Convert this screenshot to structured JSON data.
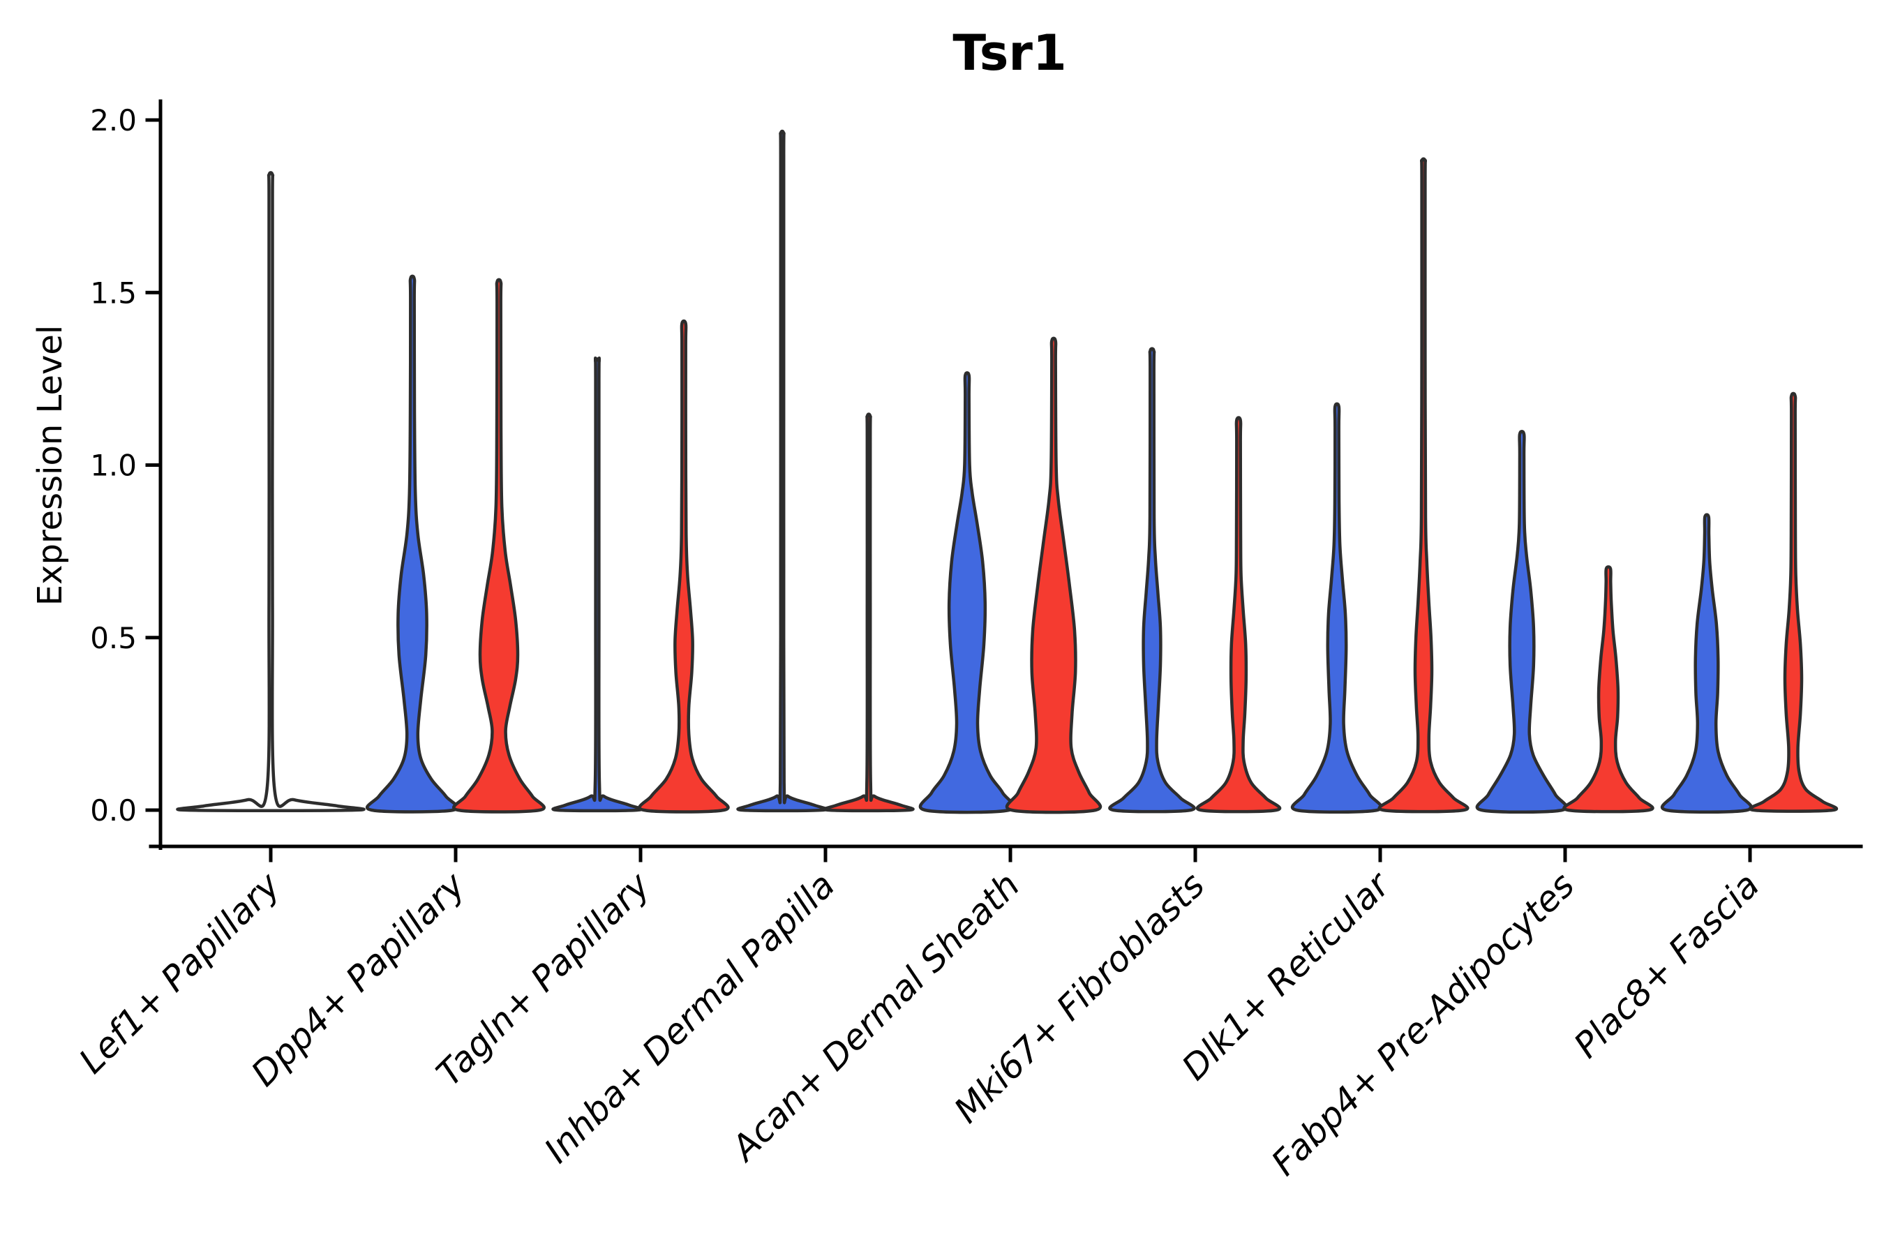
{
  "chart_data": {
    "type": "violin",
    "title": "Tsr1",
    "xlabel": "",
    "ylabel": "Expression Level",
    "ylim": [
      0.0,
      2.0
    ],
    "yticks": [
      0.0,
      0.5,
      1.0,
      1.5,
      2.0
    ],
    "ytick_labels": [
      "0.0",
      "0.5",
      "1.0",
      "1.5",
      "2.0"
    ],
    "grid": false,
    "legend_position": "none",
    "spines_visible": [
      "left",
      "bottom"
    ],
    "categories": [
      "Lef1+ Papillary",
      "Dpp4+ Papillary",
      "Tagln+ Papillary",
      "Inhba+ Dermal Papilla",
      "Acan+ Dermal Sheath",
      "Mki67+ Fibroblasts",
      "Dlk1+ Reticular",
      "Fabp4+ Pre-Adipocytes",
      "Plac8+ Fascia"
    ],
    "colors": {
      "blue": "#4169e0",
      "red": "#f53b30",
      "single": "#ffffff",
      "outline": "#2d2d2d"
    },
    "violins": [
      {
        "category": "Lef1+ Papillary",
        "series": "single",
        "max_expression": 1.84,
        "width_scale": 2,
        "profile": [
          [
            0,
            1
          ],
          [
            0.012,
            0.8
          ],
          [
            0.03,
            0.28
          ],
          [
            0.06,
            0.045
          ],
          [
            0.6,
            0.021
          ],
          [
            1.3,
            0.021
          ],
          [
            1.78,
            0.021
          ],
          [
            1.84,
            0.021
          ]
        ]
      },
      {
        "category": "Dpp4+ Papillary",
        "series": "blue",
        "max_expression": 1.54,
        "width_scale": 1,
        "profile": [
          [
            0,
            0.97
          ],
          [
            0.04,
            0.8
          ],
          [
            0.09,
            0.45
          ],
          [
            0.15,
            0.2
          ],
          [
            0.22,
            0.13
          ],
          [
            0.32,
            0.2
          ],
          [
            0.45,
            0.32
          ],
          [
            0.57,
            0.34
          ],
          [
            0.68,
            0.27
          ],
          [
            0.8,
            0.13
          ],
          [
            0.92,
            0.07
          ],
          [
            1.15,
            0.05
          ],
          [
            1.48,
            0.045
          ],
          [
            1.54,
            0.045
          ]
        ]
      },
      {
        "category": "Dpp4+ Papillary",
        "series": "red",
        "max_expression": 1.53,
        "width_scale": 1,
        "profile": [
          [
            0,
            0.97
          ],
          [
            0.04,
            0.8
          ],
          [
            0.09,
            0.5
          ],
          [
            0.16,
            0.24
          ],
          [
            0.23,
            0.16
          ],
          [
            0.3,
            0.26
          ],
          [
            0.38,
            0.4
          ],
          [
            0.45,
            0.45
          ],
          [
            0.55,
            0.4
          ],
          [
            0.65,
            0.28
          ],
          [
            0.75,
            0.15
          ],
          [
            0.88,
            0.07
          ],
          [
            1.1,
            0.05
          ],
          [
            1.47,
            0.045
          ],
          [
            1.53,
            0.045
          ]
        ]
      },
      {
        "category": "Tagln+ Papillary",
        "series": "blue",
        "max_expression": 1.3,
        "width_scale": 1,
        "profile": [
          [
            0,
            0.95
          ],
          [
            0.015,
            0.75
          ],
          [
            0.04,
            0.16
          ],
          [
            0.08,
            0.05
          ],
          [
            0.6,
            0.04
          ],
          [
            1.24,
            0.04
          ],
          [
            1.3,
            0.04
          ]
        ]
      },
      {
        "category": "Tagln+ Papillary",
        "series": "red",
        "max_expression": 1.41,
        "width_scale": 1,
        "profile": [
          [
            0,
            0.95
          ],
          [
            0.04,
            0.78
          ],
          [
            0.09,
            0.42
          ],
          [
            0.15,
            0.2
          ],
          [
            0.22,
            0.12
          ],
          [
            0.3,
            0.12
          ],
          [
            0.4,
            0.19
          ],
          [
            0.49,
            0.21
          ],
          [
            0.58,
            0.16
          ],
          [
            0.68,
            0.09
          ],
          [
            0.8,
            0.055
          ],
          [
            1.1,
            0.045
          ],
          [
            1.35,
            0.045
          ],
          [
            1.41,
            0.045
          ]
        ]
      },
      {
        "category": "Inhba+ Dermal Papilla",
        "series": "blue",
        "max_expression": 1.96,
        "width_scale": 1,
        "profile": [
          [
            0,
            0.95
          ],
          [
            0.015,
            0.75
          ],
          [
            0.04,
            0.14
          ],
          [
            0.08,
            0.045
          ],
          [
            0.7,
            0.035
          ],
          [
            1.4,
            0.035
          ],
          [
            1.9,
            0.035
          ],
          [
            1.96,
            0.035
          ]
        ]
      },
      {
        "category": "Inhba+ Dermal Papilla",
        "series": "red",
        "max_expression": 1.14,
        "width_scale": 1,
        "profile": [
          [
            0,
            0.95
          ],
          [
            0.015,
            0.75
          ],
          [
            0.04,
            0.14
          ],
          [
            0.08,
            0.045
          ],
          [
            0.6,
            0.035
          ],
          [
            1.08,
            0.035
          ],
          [
            1.14,
            0.035
          ]
        ]
      },
      {
        "category": "Acan+ Dermal Sheath",
        "series": "blue",
        "max_expression": 1.26,
        "width_scale": 1,
        "profile": [
          [
            0,
            1
          ],
          [
            0.05,
            0.85
          ],
          [
            0.1,
            0.55
          ],
          [
            0.17,
            0.32
          ],
          [
            0.25,
            0.25
          ],
          [
            0.35,
            0.3
          ],
          [
            0.48,
            0.4
          ],
          [
            0.6,
            0.43
          ],
          [
            0.72,
            0.37
          ],
          [
            0.83,
            0.24
          ],
          [
            0.92,
            0.12
          ],
          [
            1.0,
            0.06
          ],
          [
            1.2,
            0.045
          ],
          [
            1.26,
            0.045
          ]
        ]
      },
      {
        "category": "Acan+ Dermal Sheath",
        "series": "red",
        "max_expression": 1.36,
        "width_scale": 1,
        "profile": [
          [
            0,
            1
          ],
          [
            0.05,
            0.85
          ],
          [
            0.11,
            0.6
          ],
          [
            0.18,
            0.42
          ],
          [
            0.28,
            0.44
          ],
          [
            0.4,
            0.52
          ],
          [
            0.52,
            0.5
          ],
          [
            0.65,
            0.38
          ],
          [
            0.78,
            0.24
          ],
          [
            0.9,
            0.11
          ],
          [
            1.0,
            0.06
          ],
          [
            1.3,
            0.045
          ],
          [
            1.36,
            0.045
          ]
        ]
      },
      {
        "category": "Mki67+ Fibroblasts",
        "series": "blue",
        "max_expression": 1.33,
        "width_scale": 1,
        "profile": [
          [
            0,
            0.92
          ],
          [
            0.035,
            0.68
          ],
          [
            0.08,
            0.32
          ],
          [
            0.14,
            0.14
          ],
          [
            0.2,
            0.11
          ],
          [
            0.3,
            0.15
          ],
          [
            0.42,
            0.2
          ],
          [
            0.53,
            0.2
          ],
          [
            0.63,
            0.14
          ],
          [
            0.73,
            0.08
          ],
          [
            0.85,
            0.05
          ],
          [
            1.27,
            0.045
          ],
          [
            1.33,
            0.045
          ]
        ]
      },
      {
        "category": "Mki67+ Fibroblasts",
        "series": "red",
        "max_expression": 1.13,
        "width_scale": 1,
        "profile": [
          [
            0,
            0.9
          ],
          [
            0.035,
            0.65
          ],
          [
            0.08,
            0.3
          ],
          [
            0.14,
            0.13
          ],
          [
            0.2,
            0.11
          ],
          [
            0.28,
            0.15
          ],
          [
            0.38,
            0.18
          ],
          [
            0.48,
            0.17
          ],
          [
            0.58,
            0.11
          ],
          [
            0.68,
            0.06
          ],
          [
            0.8,
            0.05
          ],
          [
            1.07,
            0.045
          ],
          [
            1.13,
            0.045
          ]
        ]
      },
      {
        "category": "Dlk1+ Reticular",
        "series": "blue",
        "max_expression": 1.17,
        "width_scale": 1,
        "profile": [
          [
            0,
            0.96
          ],
          [
            0.045,
            0.78
          ],
          [
            0.1,
            0.48
          ],
          [
            0.17,
            0.24
          ],
          [
            0.25,
            0.16
          ],
          [
            0.35,
            0.19
          ],
          [
            0.47,
            0.22
          ],
          [
            0.57,
            0.2
          ],
          [
            0.67,
            0.13
          ],
          [
            0.77,
            0.07
          ],
          [
            0.9,
            0.05
          ],
          [
            1.11,
            0.045
          ],
          [
            1.17,
            0.045
          ]
        ]
      },
      {
        "category": "Dlk1+ Reticular",
        "series": "red",
        "max_expression": 1.88,
        "width_scale": 1,
        "profile": [
          [
            0,
            0.96
          ],
          [
            0.035,
            0.72
          ],
          [
            0.08,
            0.38
          ],
          [
            0.14,
            0.17
          ],
          [
            0.21,
            0.13
          ],
          [
            0.3,
            0.17
          ],
          [
            0.4,
            0.2
          ],
          [
            0.5,
            0.18
          ],
          [
            0.6,
            0.13
          ],
          [
            0.72,
            0.08
          ],
          [
            0.85,
            0.05
          ],
          [
            1.3,
            0.04
          ],
          [
            1.82,
            0.04
          ],
          [
            1.88,
            0.04
          ]
        ]
      },
      {
        "category": "Fabp4+ Pre-Adipocytes",
        "series": "blue",
        "max_expression": 1.09,
        "width_scale": 1,
        "profile": [
          [
            0,
            0.96
          ],
          [
            0.045,
            0.8
          ],
          [
            0.1,
            0.52
          ],
          [
            0.16,
            0.27
          ],
          [
            0.22,
            0.18
          ],
          [
            0.3,
            0.21
          ],
          [
            0.42,
            0.28
          ],
          [
            0.53,
            0.28
          ],
          [
            0.64,
            0.21
          ],
          [
            0.74,
            0.11
          ],
          [
            0.83,
            0.06
          ],
          [
            1.03,
            0.05
          ],
          [
            1.09,
            0.05
          ]
        ]
      },
      {
        "category": "Fabp4+ Pre-Adipocytes",
        "series": "red",
        "max_expression": 0.7,
        "width_scale": 1,
        "profile": [
          [
            0,
            0.96
          ],
          [
            0.035,
            0.74
          ],
          [
            0.08,
            0.42
          ],
          [
            0.14,
            0.21
          ],
          [
            0.2,
            0.17
          ],
          [
            0.27,
            0.22
          ],
          [
            0.35,
            0.23
          ],
          [
            0.44,
            0.18
          ],
          [
            0.52,
            0.11
          ],
          [
            0.6,
            0.07
          ],
          [
            0.66,
            0.055
          ],
          [
            0.7,
            0.05
          ]
        ]
      },
      {
        "category": "Plac8+ Fascia",
        "series": "blue",
        "max_expression": 0.85,
        "width_scale": 1,
        "profile": [
          [
            0,
            0.96
          ],
          [
            0.045,
            0.78
          ],
          [
            0.1,
            0.48
          ],
          [
            0.17,
            0.27
          ],
          [
            0.25,
            0.22
          ],
          [
            0.34,
            0.26
          ],
          [
            0.44,
            0.27
          ],
          [
            0.54,
            0.23
          ],
          [
            0.64,
            0.13
          ],
          [
            0.72,
            0.07
          ],
          [
            0.8,
            0.05
          ],
          [
            0.85,
            0.045
          ]
        ]
      },
      {
        "category": "Plac8+ Fascia",
        "series": "red",
        "max_expression": 1.2,
        "width_scale": 1,
        "profile": [
          [
            0,
            0.94
          ],
          [
            0.025,
            0.7
          ],
          [
            0.06,
            0.3
          ],
          [
            0.11,
            0.14
          ],
          [
            0.18,
            0.11
          ],
          [
            0.28,
            0.17
          ],
          [
            0.38,
            0.2
          ],
          [
            0.48,
            0.17
          ],
          [
            0.58,
            0.1
          ],
          [
            0.68,
            0.06
          ],
          [
            0.8,
            0.05
          ],
          [
            1.14,
            0.045
          ],
          [
            1.2,
            0.045
          ]
        ]
      }
    ]
  }
}
